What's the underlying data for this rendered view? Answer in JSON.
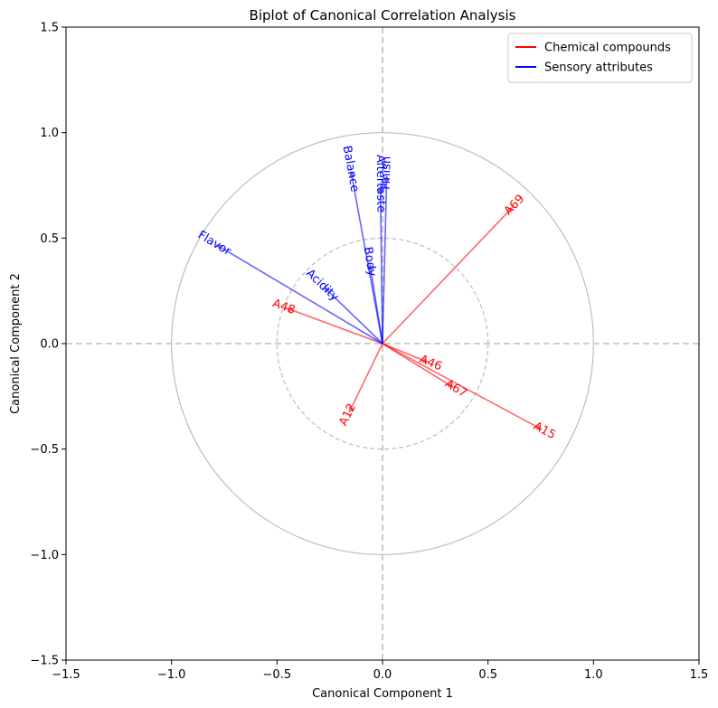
{
  "chart_data": {
    "type": "biplot",
    "title": "Biplot of Canonical Correlation Analysis",
    "xlabel": "Canonical Component 1",
    "ylabel": "Canonical Component 2",
    "xlim": [
      -1.5,
      1.5
    ],
    "ylim": [
      -1.5,
      1.5
    ],
    "xticks": [
      -1.5,
      -1.0,
      -0.5,
      0.0,
      0.5,
      1.0,
      1.5
    ],
    "yticks": [
      -1.5,
      -1.0,
      -0.5,
      0.0,
      0.5,
      1.0,
      1.5
    ],
    "xtick_labels": [
      "−1.5",
      "−1.0",
      "−0.5",
      "0.0",
      "0.5",
      "1.0",
      "1.5"
    ],
    "ytick_labels": [
      "−1.5",
      "−1.0",
      "−0.5",
      "0.0",
      "0.5",
      "1.0",
      "1.5"
    ],
    "circles": [
      {
        "radius": 1.0,
        "style": "solid",
        "color": "#bdbdbd"
      },
      {
        "radius": 0.5,
        "style": "dashed",
        "color": "#bdbdbd"
      }
    ],
    "reference_lines": {
      "x": 0.0,
      "y": 0.0,
      "style": "dashed",
      "color": "#bdbdbd"
    },
    "series": [
      {
        "name": "Chemical compounds",
        "color": "#ff0000",
        "vectors": [
          {
            "label": "A69",
            "x": 0.62,
            "y": 0.65
          },
          {
            "label": "A48",
            "x": -0.46,
            "y": 0.17
          },
          {
            "label": "A46",
            "x": 0.22,
            "y": -0.09
          },
          {
            "label": "A67",
            "x": 0.34,
            "y": -0.21
          },
          {
            "label": "A15",
            "x": 0.76,
            "y": -0.41
          },
          {
            "label": "A12",
            "x": -0.16,
            "y": -0.33
          }
        ]
      },
      {
        "name": "Sensory attributes",
        "color": "#0000ff",
        "vectors": [
          {
            "label": "Flavor",
            "x": -0.79,
            "y": 0.47
          },
          {
            "label": "Acidity",
            "x": -0.28,
            "y": 0.27
          },
          {
            "label": "Balance",
            "x": -0.15,
            "y": 0.82
          },
          {
            "label": "Aftertaste",
            "x": -0.01,
            "y": 0.75
          },
          {
            "label": "Body",
            "x": -0.06,
            "y": 0.38
          },
          {
            "label": "Finish",
            "x": 0.02,
            "y": 0.8
          }
        ]
      }
    ],
    "legend": {
      "location": "top-right",
      "entries": [
        "Chemical compounds",
        "Sensory attributes"
      ]
    }
  }
}
